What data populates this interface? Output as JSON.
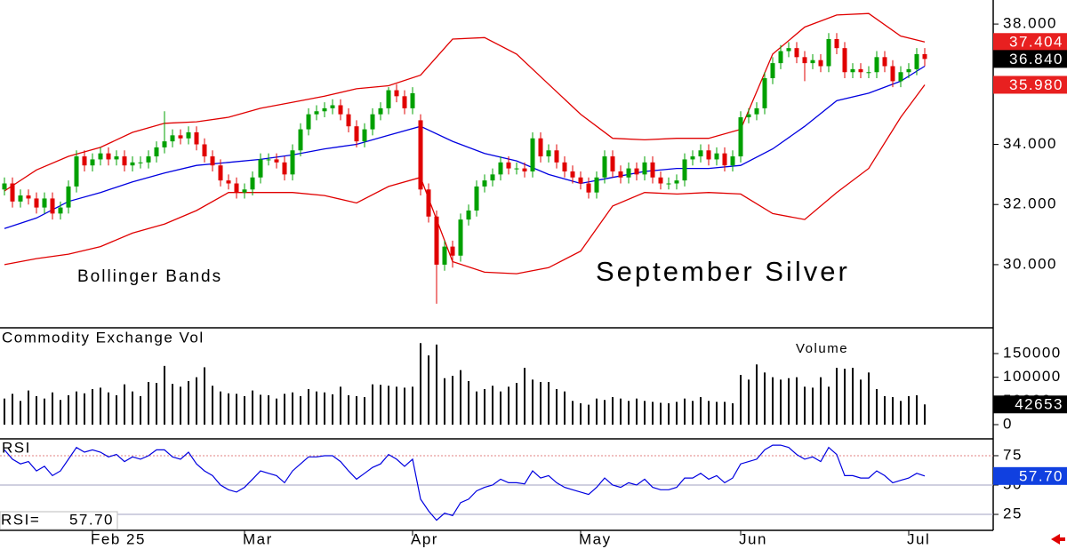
{
  "chart_data": [
    {
      "type": "candlestick",
      "title": "September Silver",
      "annotation": "Bollinger Bands",
      "categories": [
        null,
        null,
        null,
        null,
        null,
        null,
        null,
        null,
        null,
        null,
        null,
        "Feb 25",
        null,
        null,
        null,
        null,
        null,
        null,
        null,
        null,
        null,
        null,
        null,
        null,
        null,
        null,
        null,
        null,
        null,
        null,
        "Mar",
        null,
        null,
        null,
        null,
        null,
        null,
        null,
        null,
        null,
        null,
        null,
        null,
        null,
        null,
        null,
        null,
        null,
        null,
        null,
        null,
        "Apr",
        null,
        null,
        null,
        null,
        null,
        null,
        null,
        null,
        null,
        null,
        null,
        null,
        null,
        null,
        null,
        null,
        null,
        null,
        null,
        null,
        "May",
        null,
        null,
        null,
        null,
        null,
        null,
        null,
        null,
        null,
        null,
        null,
        null,
        null,
        null,
        null,
        null,
        null,
        null,
        null,
        "Jun",
        null,
        null,
        null,
        null,
        null,
        null,
        null,
        null,
        null,
        null,
        null,
        null,
        null,
        null,
        null,
        null,
        null,
        null,
        null,
        null,
        "Jul",
        null,
        null
      ],
      "open": [
        32.5,
        32.7,
        32.1,
        32.3,
        32.2,
        31.9,
        32.2,
        31.7,
        31.9,
        32.6,
        33.6,
        33.3,
        33.5,
        33.7,
        33.5,
        33.6,
        33.3,
        33.4,
        33.4,
        33.6,
        33.9,
        34.1,
        34.3,
        34.2,
        34.4,
        34.0,
        33.6,
        33.3,
        32.8,
        32.7,
        32.4,
        32.5,
        32.9,
        33.5,
        33.5,
        33.4,
        33.0,
        33.8,
        34.5,
        35.0,
        35.1,
        35.2,
        35.3,
        35.0,
        34.6,
        34.1,
        34.5,
        35.0,
        35.2,
        35.8,
        35.6,
        35.2,
        34.8,
        32.5,
        31.6,
        30.0,
        30.6,
        30.3,
        31.5,
        31.8,
        32.6,
        32.8,
        33.0,
        33.4,
        33.2,
        33.2,
        33.1,
        34.2,
        33.6,
        33.8,
        33.4,
        33.1,
        32.9,
        32.7,
        32.4,
        32.9,
        33.6,
        33.1,
        32.9,
        33.2,
        33.0,
        33.4,
        32.9,
        32.7,
        32.7,
        32.8,
        33.5,
        33.6,
        33.8,
        33.5,
        33.7,
        33.3,
        33.6,
        34.9,
        35.0,
        35.2,
        36.2,
        36.7,
        37.1,
        37.2,
        36.9,
        36.7,
        36.8,
        36.6,
        37.5,
        37.2,
        36.4,
        36.5,
        36.4,
        36.4,
        36.9,
        36.6,
        36.1,
        36.4,
        36.5,
        37.0
      ],
      "high": [
        32.9,
        32.9,
        32.5,
        32.5,
        32.4,
        32.4,
        32.4,
        32.1,
        32.8,
        33.8,
        33.8,
        33.7,
        33.9,
        33.9,
        33.8,
        33.8,
        33.6,
        33.6,
        33.8,
        34.1,
        35.1,
        34.5,
        34.5,
        34.6,
        34.6,
        34.2,
        33.8,
        33.5,
        33.0,
        32.9,
        32.7,
        33.1,
        33.7,
        33.7,
        33.7,
        33.6,
        34.0,
        34.7,
        35.2,
        35.3,
        35.4,
        35.5,
        35.5,
        35.2,
        34.8,
        34.7,
        35.2,
        35.4,
        35.9,
        36.0,
        35.8,
        35.9,
        35.0,
        32.7,
        31.8,
        30.8,
        30.8,
        31.7,
        32.0,
        32.8,
        33.0,
        33.2,
        33.6,
        33.6,
        33.4,
        33.4,
        34.4,
        34.4,
        34.0,
        34.0,
        33.6,
        33.3,
        33.1,
        32.9,
        33.1,
        33.8,
        33.8,
        33.3,
        33.4,
        33.4,
        33.6,
        33.6,
        33.1,
        32.9,
        33.0,
        33.7,
        33.8,
        34.0,
        34.0,
        33.9,
        33.9,
        33.8,
        35.1,
        35.2,
        35.4,
        36.4,
        36.9,
        37.3,
        37.4,
        37.4,
        37.1,
        37.0,
        37.0,
        37.7,
        37.7,
        37.4,
        36.7,
        36.7,
        36.6,
        37.1,
        37.1,
        36.8,
        36.6,
        36.7,
        37.2,
        37.2
      ],
      "low": [
        32.3,
        31.9,
        31.9,
        32.0,
        31.7,
        31.7,
        31.5,
        31.5,
        31.7,
        32.4,
        33.1,
        33.1,
        33.3,
        33.3,
        33.3,
        33.1,
        33.1,
        33.2,
        33.2,
        33.4,
        33.7,
        33.9,
        34.0,
        34.0,
        33.8,
        33.4,
        33.1,
        32.6,
        32.5,
        32.2,
        32.2,
        32.3,
        32.7,
        33.3,
        33.2,
        32.8,
        32.8,
        33.6,
        34.3,
        34.8,
        34.9,
        35.0,
        34.8,
        34.4,
        33.9,
        33.9,
        34.3,
        34.8,
        35.0,
        35.4,
        35.0,
        35.0,
        32.3,
        31.4,
        28.7,
        29.8,
        29.9,
        30.1,
        31.3,
        31.6,
        32.4,
        32.6,
        32.8,
        33.0,
        33.0,
        32.9,
        32.9,
        33.4,
        33.4,
        33.2,
        32.9,
        32.7,
        32.5,
        32.2,
        32.2,
        32.7,
        32.9,
        32.7,
        32.7,
        32.8,
        32.8,
        32.7,
        32.5,
        32.5,
        32.5,
        32.6,
        33.3,
        33.4,
        33.3,
        33.3,
        33.1,
        33.1,
        33.4,
        34.7,
        34.8,
        35.0,
        36.0,
        36.5,
        36.9,
        36.7,
        36.1,
        36.5,
        36.4,
        36.4,
        37.0,
        36.2,
        36.2,
        36.2,
        36.2,
        36.2,
        36.4,
        35.9,
        35.9,
        36.2,
        36.3,
        36.6
      ],
      "close": [
        32.7,
        32.1,
        32.3,
        32.2,
        31.9,
        32.2,
        31.7,
        31.9,
        32.6,
        33.6,
        33.3,
        33.5,
        33.7,
        33.5,
        33.6,
        33.3,
        33.4,
        33.4,
        33.6,
        33.9,
        34.1,
        34.3,
        34.2,
        34.4,
        34.0,
        33.6,
        33.3,
        32.8,
        32.7,
        32.4,
        32.5,
        32.9,
        33.5,
        33.5,
        33.4,
        33.0,
        33.8,
        34.5,
        35.0,
        35.1,
        35.2,
        35.3,
        35.0,
        34.6,
        34.1,
        34.5,
        35.0,
        35.2,
        35.8,
        35.6,
        35.2,
        35.7,
        32.5,
        31.6,
        30.0,
        30.6,
        30.3,
        31.5,
        31.8,
        32.6,
        32.8,
        33.0,
        33.4,
        33.2,
        33.2,
        33.1,
        34.2,
        33.6,
        33.8,
        33.4,
        33.1,
        32.9,
        32.7,
        32.4,
        32.9,
        33.6,
        33.1,
        32.9,
        33.2,
        33.0,
        33.4,
        32.9,
        32.7,
        32.7,
        32.8,
        33.5,
        33.6,
        33.8,
        33.5,
        33.7,
        33.3,
        33.6,
        34.9,
        35.0,
        35.2,
        36.2,
        36.7,
        37.1,
        37.2,
        36.9,
        36.7,
        36.8,
        36.6,
        37.5,
        37.2,
        36.4,
        36.5,
        36.4,
        36.4,
        36.9,
        36.6,
        36.1,
        36.4,
        36.5,
        37.0,
        36.84
      ],
      "up_color": "#00a000",
      "down_color": "#e00000",
      "ylim": [
        27.93,
        38.8
      ],
      "yticks": [
        {
          "value": 30,
          "label": "30.000"
        },
        {
          "value": 32,
          "label": "32.000"
        },
        {
          "value": 34,
          "label": "34.000"
        },
        {
          "value": 36,
          "label": "36.000"
        },
        {
          "value": 38,
          "label": "38.000"
        }
      ],
      "bands": {
        "x": [
          0,
          4,
          8,
          12,
          16,
          20,
          24,
          28,
          32,
          36,
          40,
          44,
          48,
          52,
          56,
          60,
          64,
          68,
          72,
          76,
          80,
          84,
          88,
          92,
          96,
          100,
          104,
          108,
          112,
          115
        ],
        "series": [
          {
            "color": "#e00000",
            "values": [
              32.45,
              33.15,
              33.6,
              33.9,
              34.4,
              34.7,
              34.75,
              34.9,
              35.2,
              35.4,
              35.6,
              35.85,
              35.95,
              36.3,
              37.5,
              37.55,
              37.0,
              36.0,
              35.0,
              34.2,
              34.15,
              34.2,
              34.2,
              34.5,
              37.0,
              37.9,
              38.3,
              38.35,
              37.6,
              37.404
            ]
          },
          {
            "color": "#0000e0",
            "values": [
              31.2,
              31.55,
              32.1,
              32.4,
              32.75,
              33.05,
              33.3,
              33.4,
              33.5,
              33.65,
              33.85,
              34.0,
              34.3,
              34.6,
              34.1,
              33.7,
              33.45,
              33.0,
              32.7,
              32.9,
              33.1,
              33.2,
              33.2,
              33.3,
              33.85,
              34.6,
              35.45,
              35.7,
              36.1,
              36.6
            ]
          },
          {
            "color": "#e00000",
            "values": [
              30.0,
              30.2,
              30.35,
              30.6,
              31.05,
              31.35,
              31.8,
              32.4,
              32.4,
              32.4,
              32.3,
              32.05,
              32.6,
              32.9,
              30.1,
              29.75,
              29.7,
              29.9,
              30.45,
              31.95,
              32.4,
              32.35,
              32.4,
              32.35,
              31.7,
              31.5,
              32.4,
              33.2,
              34.9,
              35.98
            ]
          }
        ]
      },
      "last_labels": {
        "upper": "37.404",
        "close": "36.840",
        "lower": "35.980"
      }
    },
    {
      "type": "bar",
      "title": "Commodity Exchange Vol",
      "annotation": "Volume",
      "color": "#000000",
      "values": [
        55000,
        65000,
        50000,
        72000,
        60000,
        55000,
        68000,
        52000,
        62000,
        70000,
        66000,
        75000,
        78000,
        68000,
        62000,
        85000,
        70000,
        60000,
        90000,
        88000,
        124000,
        86000,
        80000,
        92000,
        100000,
        121000,
        82000,
        70000,
        66000,
        65000,
        60000,
        72000,
        63000,
        62000,
        55000,
        65000,
        68000,
        60000,
        75000,
        70000,
        68000,
        64000,
        80000,
        62000,
        60000,
        58000,
        85000,
        84000,
        82000,
        80000,
        78000,
        80000,
        172000,
        146000,
        169000,
        98000,
        103000,
        115000,
        92000,
        70000,
        75000,
        82000,
        70000,
        80000,
        88000,
        120000,
        95000,
        90000,
        90000,
        75000,
        70000,
        50000,
        45000,
        42000,
        55000,
        52000,
        58000,
        55000,
        50000,
        55000,
        50000,
        48000,
        46000,
        45000,
        48000,
        55000,
        50000,
        58000,
        50000,
        48000,
        48000,
        45000,
        105000,
        95000,
        127000,
        110000,
        100000,
        95000,
        98000,
        100000,
        80000,
        78000,
        100000,
        80000,
        120000,
        118000,
        120000,
        95000,
        110000,
        75000,
        60000,
        58000,
        50000,
        60000,
        62000,
        42653
      ],
      "ylim": [
        -28125,
        202500
      ],
      "yticks": [
        0,
        50000,
        100000,
        150000
      ]
    },
    {
      "type": "line",
      "title": "RSI",
      "label": "RSI=",
      "color": "#0000e0",
      "values": [
        80,
        72,
        68,
        70,
        62,
        66,
        58,
        62,
        72,
        82,
        78,
        80,
        78,
        74,
        76,
        70,
        74,
        72,
        75,
        80,
        80,
        74,
        72,
        78,
        68,
        62,
        58,
        50,
        46,
        44,
        48,
        55,
        62,
        60,
        58,
        52,
        62,
        68,
        74,
        74,
        75,
        75,
        70,
        62,
        55,
        60,
        65,
        68,
        76,
        72,
        66,
        72,
        38,
        28,
        20,
        26,
        24,
        35,
        38,
        45,
        48,
        50,
        55,
        52,
        52,
        51,
        62,
        56,
        58,
        52,
        48,
        46,
        44,
        42,
        48,
        56,
        50,
        48,
        52,
        50,
        55,
        48,
        46,
        46,
        48,
        56,
        56,
        60,
        55,
        58,
        52,
        56,
        68,
        70,
        72,
        80,
        84,
        84,
        82,
        76,
        72,
        74,
        70,
        82,
        76,
        58,
        58,
        56,
        56,
        62,
        58,
        52,
        54,
        56,
        60,
        57.7
      ],
      "last_label": "57.70",
      "ylim": [
        11.4,
        88.6
      ],
      "yticks": [
        25,
        50,
        75
      ]
    }
  ]
}
